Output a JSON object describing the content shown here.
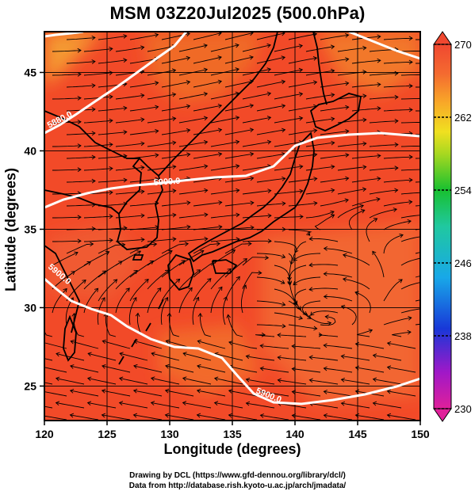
{
  "title": "MSM 03Z20Jul2025 (500.0hPa)",
  "xlabel": "Longitude (degrees)",
  "ylabel": "Latitude  (degrees)",
  "x_ticks": [
    "120",
    "125",
    "130",
    "135",
    "140",
    "145",
    "150"
  ],
  "y_ticks": [
    "25",
    "30",
    "35",
    "40",
    "45"
  ],
  "colorbar_ticks": [
    "270",
    "262",
    "254",
    "246",
    "238",
    "230"
  ],
  "contour_labels": [
    "5880.0",
    "5900.0",
    "5900.0",
    "5900.0"
  ],
  "credit_line1": "Drawing by DCL (https://www.gfd-dennou.org/library/dcl/)",
  "credit_line2": "Data from http://database.rish.kyoto-u.ac.jp/arch/jmadata/",
  "colors": {
    "field_main": "#f24a28",
    "field_warm": "#f07028",
    "field_orange": "#f4902c",
    "contour": "#ffffff",
    "streamline": "#000000"
  },
  "chart_data": {
    "type": "map",
    "xlim": [
      120,
      150
    ],
    "ylim": [
      22.8,
      47.6
    ],
    "colorbar_range": [
      230,
      270
    ],
    "contour_values": [
      5880,
      5900
    ]
  }
}
